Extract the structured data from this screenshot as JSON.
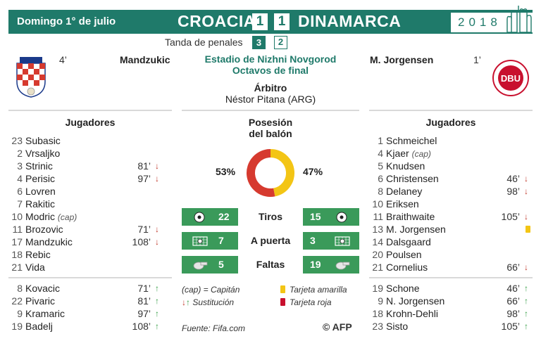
{
  "header": {
    "date": "Domingo 1° de julio",
    "home_team": "CROACIA",
    "away_team": "DINAMARCA",
    "home_score": "1",
    "away_score": "1",
    "year": "2018"
  },
  "penalties": {
    "label": "Tanda de penales",
    "home": "3",
    "away": "2"
  },
  "goals": {
    "home": {
      "minute": "4’",
      "scorer": "Mandzukic"
    },
    "away": {
      "minute": "1’",
      "scorer": "M. Jorgensen"
    }
  },
  "venue": {
    "stadium": "Estadio de Nizhni Novgorod",
    "round": "Octavos de final"
  },
  "referee": {
    "title": "Árbitro",
    "name": "Néstor Pitana (ARG)"
  },
  "columns": {
    "home_title": "Jugadores",
    "away_title": "Jugadores"
  },
  "home_players": [
    {
      "num": "23",
      "name": "Subasic"
    },
    {
      "num": "2",
      "name": "Vrsaljko"
    },
    {
      "num": "3",
      "name": "Strinic",
      "min": "81’",
      "arrow": "down"
    },
    {
      "num": "4",
      "name": "Perisic",
      "min": "97’",
      "arrow": "down"
    },
    {
      "num": "6",
      "name": "Lovren"
    },
    {
      "num": "7",
      "name": "Rakitic"
    },
    {
      "num": "10",
      "name": "Modric",
      "cap": "(cap)"
    },
    {
      "num": "11",
      "name": "Brozovic",
      "min": "71’",
      "arrow": "down"
    },
    {
      "num": "17",
      "name": "Mandzukic",
      "min": "108’",
      "arrow": "down"
    },
    {
      "num": "18",
      "name": "Rebic"
    },
    {
      "num": "21",
      "name": "Vida"
    }
  ],
  "home_subs": [
    {
      "num": "8",
      "name": "Kovacic",
      "min": "71’",
      "arrow": "up"
    },
    {
      "num": "22",
      "name": "Pivaric",
      "min": "81’",
      "arrow": "up"
    },
    {
      "num": "9",
      "name": "Kramaric",
      "min": "97’",
      "arrow": "up"
    },
    {
      "num": "19",
      "name": "Badelj",
      "min": "108’",
      "arrow": "up"
    }
  ],
  "away_players": [
    {
      "num": "1",
      "name": "Schmeichel"
    },
    {
      "num": "4",
      "name": "Kjaer",
      "cap": "(cap)"
    },
    {
      "num": "5",
      "name": "Knudsen"
    },
    {
      "num": "6",
      "name": "Christensen",
      "min": "46’",
      "arrow": "down"
    },
    {
      "num": "8",
      "name": "Delaney",
      "min": "98’",
      "arrow": "down"
    },
    {
      "num": "10",
      "name": "Eriksen"
    },
    {
      "num": "11",
      "name": "Braithwaite",
      "min": "105’",
      "arrow": "down"
    },
    {
      "num": "13",
      "name": "M. Jorgensen",
      "card": "yellow"
    },
    {
      "num": "14",
      "name": "Dalsgaard"
    },
    {
      "num": "20",
      "name": "Poulsen"
    },
    {
      "num": "21",
      "name": "Cornelius",
      "min": "66’",
      "arrow": "down"
    }
  ],
  "away_subs": [
    {
      "num": "19",
      "name": "Schone",
      "min": "46’",
      "arrow": "up"
    },
    {
      "num": "9",
      "name": "N. Jorgensen",
      "min": "66’",
      "arrow": "up"
    },
    {
      "num": "18",
      "name": "Krohn-Dehli",
      "min": "98’",
      "arrow": "up"
    },
    {
      "num": "23",
      "name": "Sisto",
      "min": "105’",
      "arrow": "up"
    }
  ],
  "possession": {
    "title_line1": "Posesión",
    "title_line2": "del balón",
    "home": "53%",
    "away": "47%",
    "home_value": 53,
    "away_value": 47
  },
  "stats": [
    {
      "label": "Tiros",
      "home": "22",
      "away": "15",
      "icon": "ball-icon"
    },
    {
      "label": "A puerta",
      "home": "7",
      "away": "3",
      "icon": "goal-icon"
    },
    {
      "label": "Faltas",
      "home": "5",
      "away": "19",
      "icon": "whistle-icon"
    }
  ],
  "legend": {
    "captain": "(cap) = Capitán",
    "substitution": "Sustitución",
    "yellow": "Tarjeta amarilla",
    "red": "Tarjeta roja"
  },
  "source": "Fuente: Fifa.com",
  "credit": "© AFP",
  "colors": {
    "brand": "#1f7a6a",
    "home_arc": "#d63a2f",
    "away_arc": "#f3c515",
    "stat_bar": "#3a9a5a"
  }
}
